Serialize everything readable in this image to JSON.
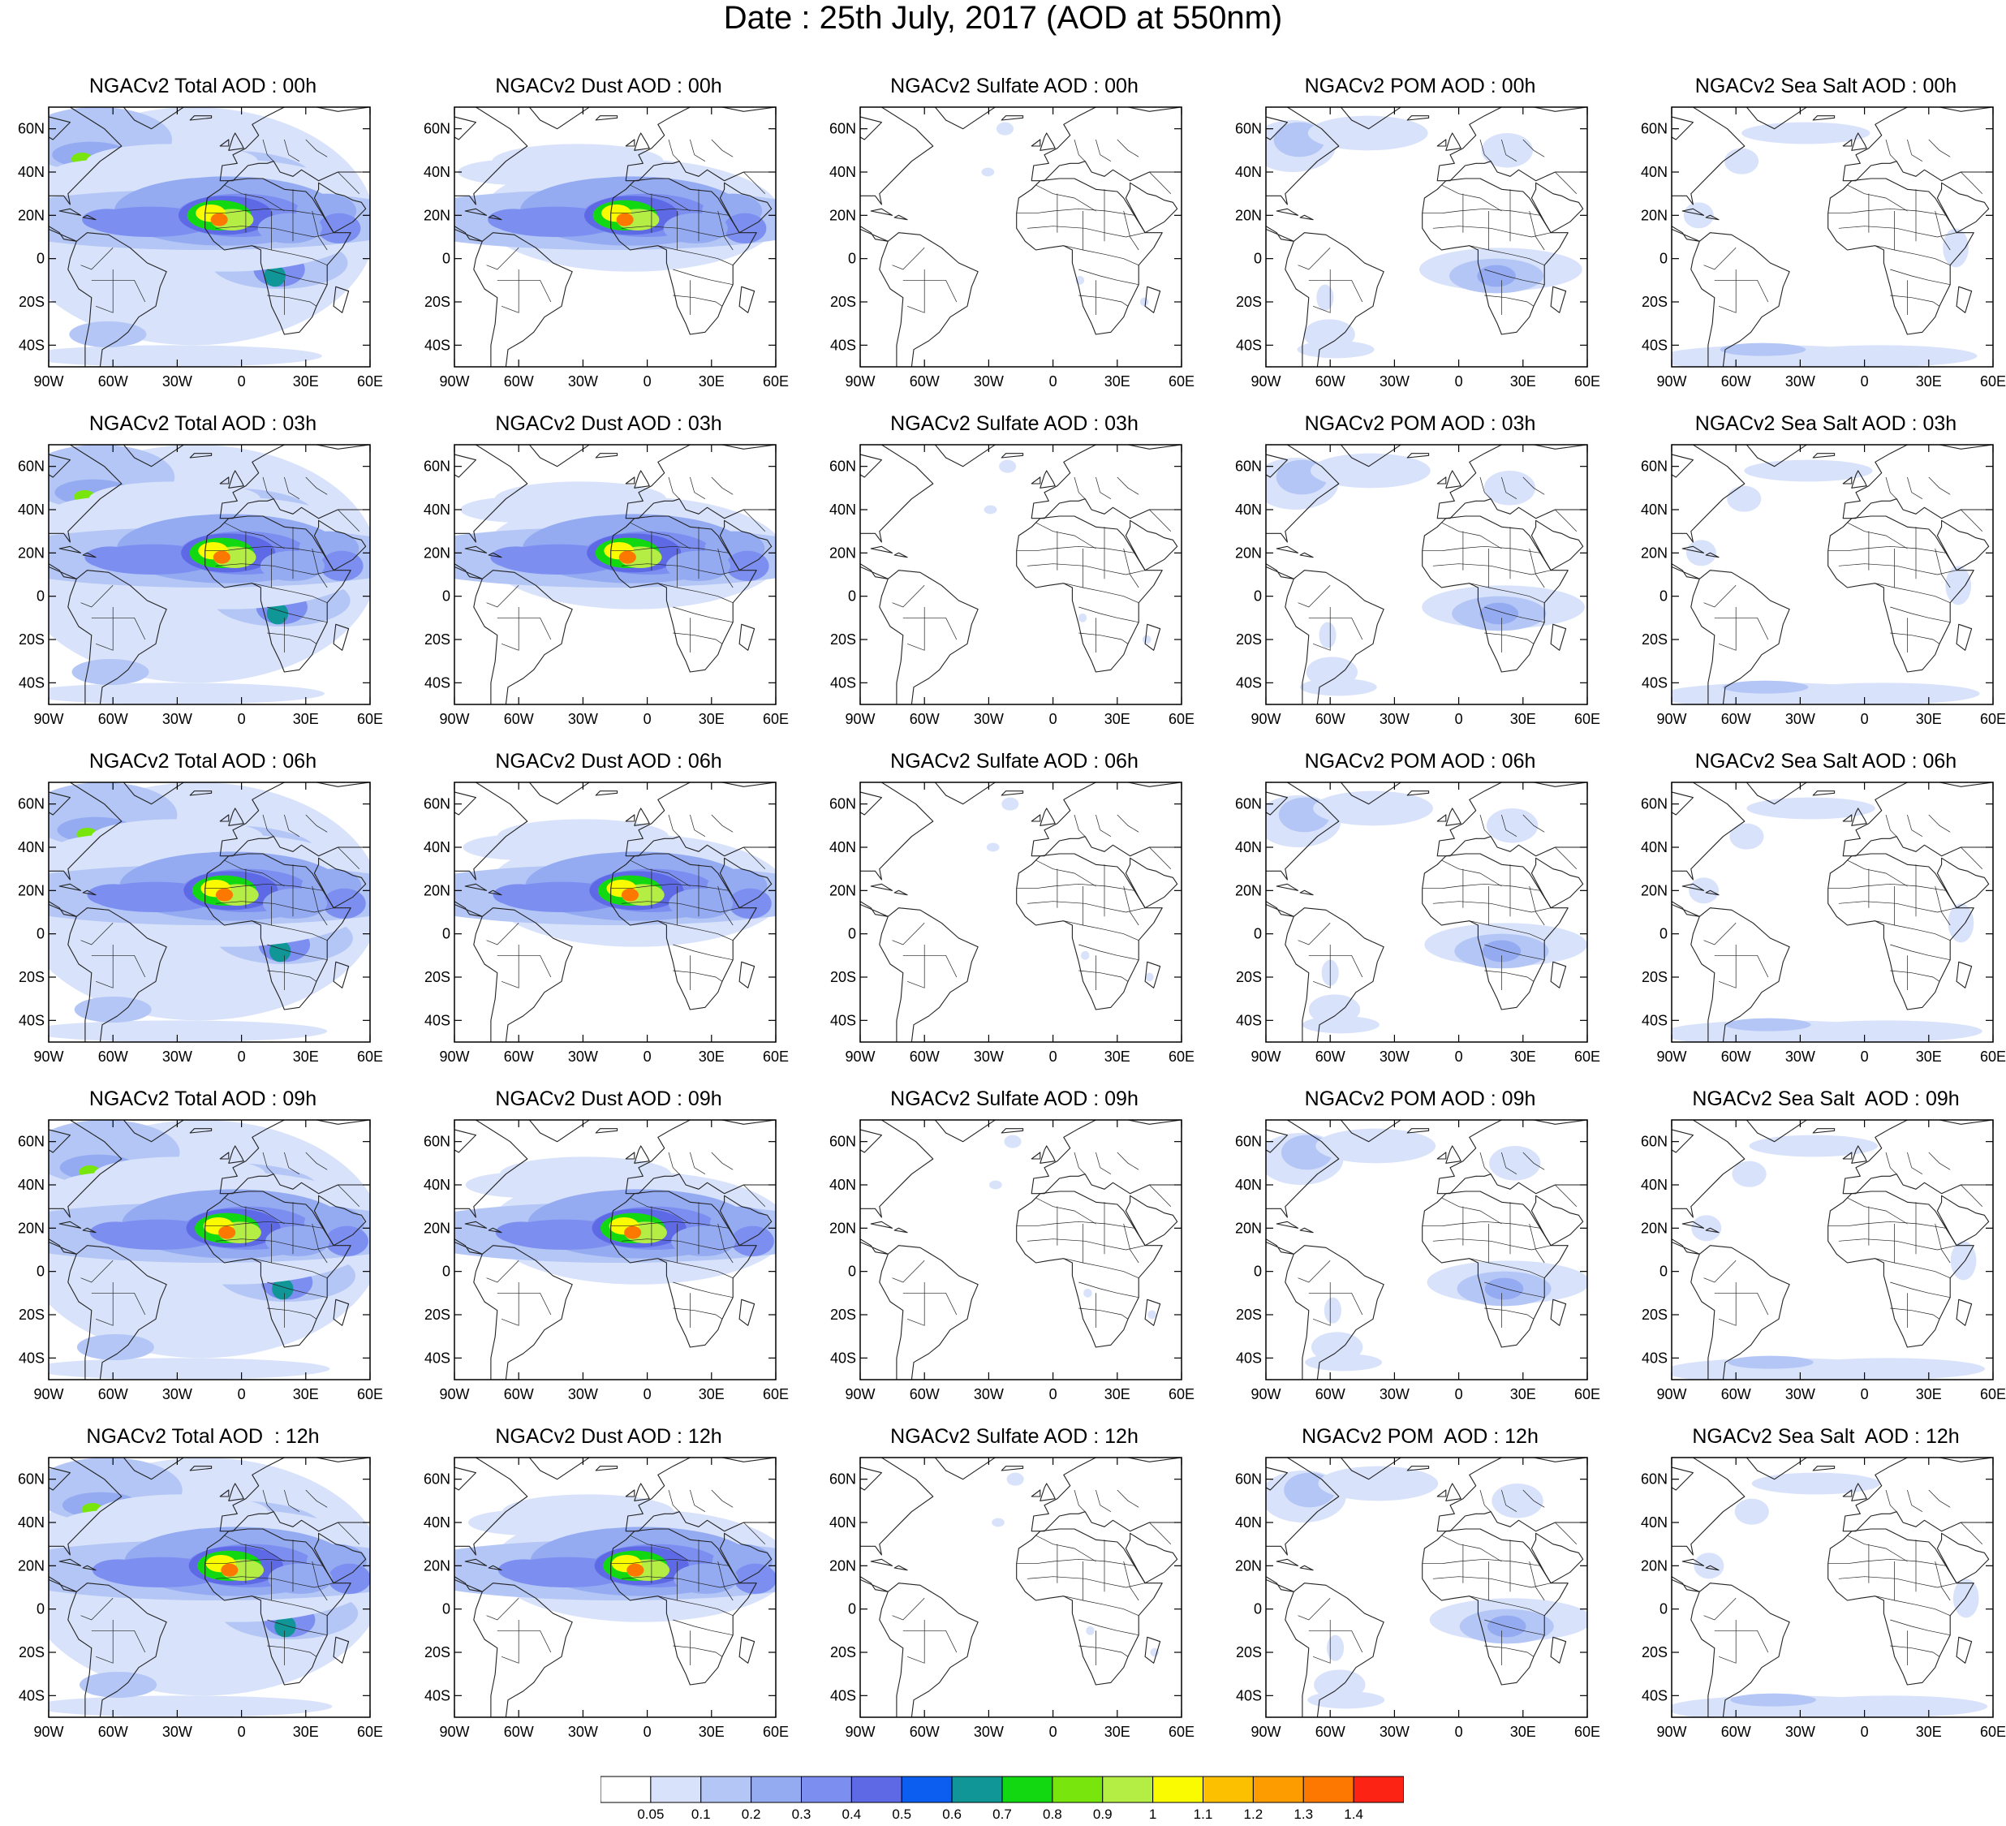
{
  "title": "Date : 25th July, 2017 (AOD at 550nm)",
  "rows": [
    "00h",
    "03h",
    "06h",
    "09h",
    "12h"
  ],
  "columns": [
    {
      "key": "total",
      "label": "NGACv2 Total AOD"
    },
    {
      "key": "dust",
      "label": "NGACv2 Dust AOD"
    },
    {
      "key": "sulfate",
      "label": "NGACv2 Sulfate AOD"
    },
    {
      "key": "pom",
      "label": "NGACv2 POM AOD"
    },
    {
      "key": "seasalt",
      "label": "NGACv2 Sea Salt AOD"
    }
  ],
  "panel_titles": [
    [
      "NGACv2 Total AOD : 00h",
      "NGACv2 Dust AOD : 00h",
      "NGACv2 Sulfate AOD : 00h",
      "NGACv2 POM AOD : 00h",
      "NGACv2 Sea Salt AOD : 00h"
    ],
    [
      "NGACv2 Total AOD : 03h",
      "NGACv2 Dust AOD : 03h",
      "NGACv2 Sulfate AOD : 03h",
      "NGACv2 POM AOD : 03h",
      "NGACv2 Sea Salt AOD : 03h"
    ],
    [
      "NGACv2 Total AOD : 06h",
      "NGACv2 Dust AOD : 06h",
      "NGACv2 Sulfate AOD : 06h",
      "NGACv2 POM AOD : 06h",
      "NGACv2 Sea Salt AOD : 06h"
    ],
    [
      "NGACv2 Total AOD : 09h",
      "NGACv2 Dust AOD : 09h",
      "NGACv2 Sulfate AOD : 09h",
      "NGACv2 POM AOD : 09h",
      "NGACv2 Sea Salt  AOD : 09h"
    ],
    [
      "NGACv2 Total AOD  : 12h",
      "NGACv2 Dust AOD : 12h",
      "NGACv2 Sulfate AOD : 12h",
      "NGACv2 POM  AOD : 12h",
      "NGACv2 Sea Salt  AOD : 12h"
    ]
  ],
  "map_extent": {
    "lon": [
      -90,
      60
    ],
    "lat": [
      -50,
      70
    ]
  },
  "lat_ticks": [
    "60N",
    "40N",
    "20N",
    "0",
    "20S",
    "40S"
  ],
  "lon_ticks": [
    "90W",
    "60W",
    "30W",
    "0",
    "30E",
    "60E"
  ],
  "colorbar": {
    "colors": [
      "#ffffff",
      "#d8e2fa",
      "#b4c6f6",
      "#94abf2",
      "#7c8ff0",
      "#5e69e6",
      "#0b5ef0",
      "#109696",
      "#12d812",
      "#78e60c",
      "#b4ee44",
      "#fafa00",
      "#fcc000",
      "#fc9c00",
      "#fc7800",
      "#fc2214"
    ],
    "labels": [
      "0.05",
      "0.1",
      "0.2",
      "0.3",
      "0.4",
      "0.5",
      "0.6",
      "0.7",
      "0.8",
      "0.9",
      "1",
      "1.1",
      "1.2",
      "1.3",
      "1.4"
    ]
  }
}
